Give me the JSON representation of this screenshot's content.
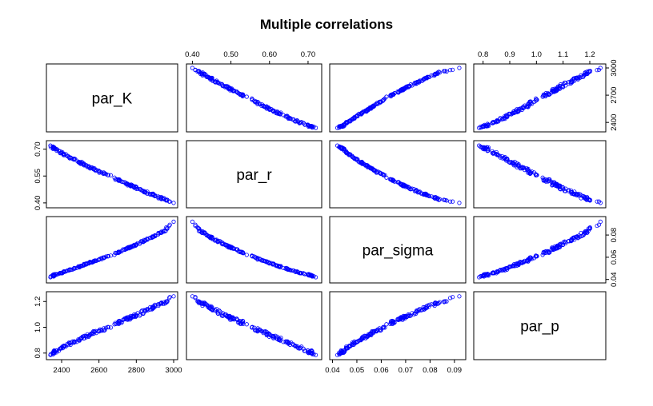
{
  "chart_data": {
    "type": "scatter",
    "title": "Multiple correlations",
    "point_color": "#0000ff",
    "variables": [
      {
        "name": "par_K",
        "range": [
          2340,
          3000
        ],
        "ticks": [
          {
            "value": 2400,
            "label": "2400"
          },
          {
            "value": 2600,
            "label": "2600"
          },
          {
            "value": 2700,
            "label": "2700"
          },
          {
            "value": 2800,
            "label": "2800"
          },
          {
            "value": 3000,
            "label": "3000"
          }
        ]
      },
      {
        "name": "par_r",
        "range": [
          0.395,
          0.725
        ],
        "ticks": [
          {
            "value": 0.4,
            "label": "0.40"
          },
          {
            "value": 0.5,
            "label": "0.50"
          },
          {
            "value": 0.55,
            "label": "0.55"
          },
          {
            "value": 0.6,
            "label": "0.60"
          },
          {
            "value": 0.7,
            "label": "0.70"
          }
        ]
      },
      {
        "name": "par_sigma",
        "range": [
          0.0405,
          0.093
        ],
        "ticks": [
          {
            "value": 0.04,
            "label": "0.04"
          },
          {
            "value": 0.05,
            "label": "0.05"
          },
          {
            "value": 0.06,
            "label": "0.06"
          },
          {
            "value": 0.07,
            "label": "0.07"
          },
          {
            "value": 0.08,
            "label": "0.08"
          },
          {
            "value": 0.09,
            "label": "0.09"
          }
        ]
      },
      {
        "name": "par_p",
        "range": [
          0.78,
          1.245
        ],
        "ticks": [
          {
            "value": 0.8,
            "label": "0.8"
          },
          {
            "value": 0.9,
            "label": "0.9"
          },
          {
            "value": 1.0,
            "label": "1.0"
          },
          {
            "value": 1.1,
            "label": "1.1"
          },
          {
            "value": 1.2,
            "label": "1.2"
          }
        ]
      }
    ],
    "tick_axes": {
      "top": [
        {
          "col": 1,
          "var": 1,
          "values": [
            0.4,
            0.5,
            0.6,
            0.7
          ]
        },
        {
          "col": 3,
          "var": 3,
          "values": [
            0.8,
            0.9,
            1.0,
            1.1,
            1.2
          ]
        }
      ],
      "bottom": [
        {
          "col": 0,
          "var": 0,
          "values": [
            2400,
            2600,
            2800,
            3000
          ]
        },
        {
          "col": 2,
          "var": 2,
          "values": [
            0.04,
            0.05,
            0.06,
            0.07,
            0.08,
            0.09
          ]
        }
      ],
      "left": [
        {
          "row": 1,
          "var": 1,
          "values": [
            0.4,
            0.55,
            0.7
          ]
        },
        {
          "row": 3,
          "var": 3,
          "values": [
            0.8,
            1.0,
            1.2
          ]
        }
      ],
      "right": [
        {
          "row": 0,
          "var": 0,
          "values": [
            2400,
            2700,
            3000
          ]
        },
        {
          "row": 2,
          "var": 2,
          "values": [
            0.04,
            0.06,
            0.08
          ]
        }
      ]
    },
    "sample_points": [
      [
        2340,
        0.72,
        0.042,
        0.785
      ],
      [
        2360,
        0.705,
        0.044,
        0.81
      ],
      [
        2400,
        0.68,
        0.046,
        0.84
      ],
      [
        2450,
        0.65,
        0.049,
        0.88
      ],
      [
        2500,
        0.625,
        0.052,
        0.91
      ],
      [
        2550,
        0.6,
        0.055,
        0.94
      ],
      [
        2600,
        0.575,
        0.058,
        0.975
      ],
      [
        2650,
        0.555,
        0.061,
        1.0
      ],
      [
        2700,
        0.53,
        0.064,
        1.035
      ],
      [
        2750,
        0.505,
        0.068,
        1.065
      ],
      [
        2800,
        0.485,
        0.0715,
        1.095
      ],
      [
        2850,
        0.46,
        0.0755,
        1.13
      ],
      [
        2900,
        0.44,
        0.0795,
        1.16
      ],
      [
        2950,
        0.42,
        0.084,
        1.195
      ],
      [
        3000,
        0.4,
        0.092,
        1.24
      ]
    ],
    "xlabel": "",
    "ylabel": "",
    "grid": false,
    "legend": "none"
  }
}
